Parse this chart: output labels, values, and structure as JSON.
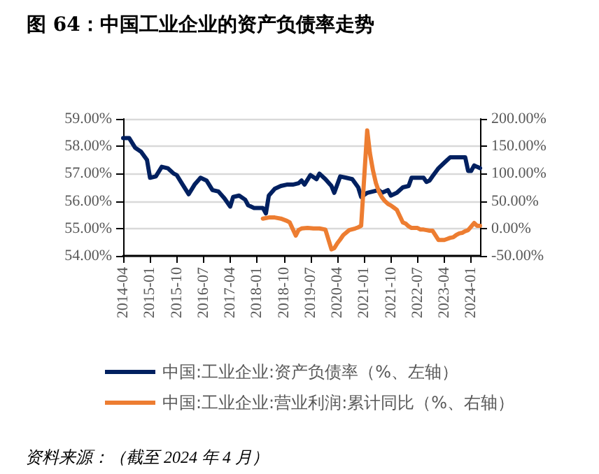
{
  "chart_data": {
    "type": "line",
    "title": "图 64：中国工业企业的资产负债率走势",
    "annotations": [
      "资料来源：（截至 2024 年 4 月）"
    ],
    "xlim": [
      "2014-04",
      "2024-04"
    ],
    "xticks": [
      "2014-04",
      "2015-01",
      "2015-10",
      "2016-07",
      "2017-04",
      "2018-01",
      "2018-10",
      "2019-07",
      "2020-04",
      "2021-01",
      "2021-10",
      "2022-07",
      "2023-04",
      "2024-01"
    ],
    "ylim": [
      54,
      59
    ],
    "yticks": [
      {
        "value": 54,
        "label": "54.00%"
      },
      {
        "value": 55,
        "label": "55.00%"
      },
      {
        "value": 56,
        "label": "56.00%"
      },
      {
        "value": 57,
        "label": "57.00%"
      },
      {
        "value": 58,
        "label": "58.00%"
      },
      {
        "value": 59,
        "label": "59.00%"
      }
    ],
    "y2lim": [
      -50,
      200
    ],
    "y2ticks": [
      {
        "value": -50,
        "label": "-50.00%"
      },
      {
        "value": 0,
        "label": "0.00%"
      },
      {
        "value": 50,
        "label": "50.00%"
      },
      {
        "value": 100,
        "label": "100.00%"
      },
      {
        "value": 150,
        "label": "150.00%"
      },
      {
        "value": 200,
        "label": "200.00%"
      }
    ],
    "grid": "y",
    "legend": "bottom",
    "marker": "none",
    "line_style": "solid",
    "series": [
      {
        "name": "中国:工业企业:资产负债率（%、左轴）",
        "color": "#002060",
        "x": [
          "2014-04",
          "2014-06",
          "2014-08",
          "2014-10",
          "2014-12",
          "2015-01",
          "2015-03",
          "2015-05",
          "2015-07",
          "2015-09",
          "2015-10",
          "2015-12",
          "2016-02",
          "2016-04",
          "2016-06",
          "2016-08",
          "2016-10",
          "2016-12",
          "2017-02",
          "2017-04",
          "2017-05",
          "2017-07",
          "2017-09",
          "2017-10",
          "2017-12",
          "2018-02",
          "2018-03",
          "2018-04",
          "2018-05",
          "2018-07",
          "2018-09",
          "2018-11",
          "2019-01",
          "2019-03",
          "2019-04",
          "2019-05",
          "2019-07",
          "2019-09",
          "2019-10",
          "2019-12",
          "2020-02",
          "2020-03",
          "2020-05",
          "2020-07",
          "2020-09",
          "2020-11",
          "2020-12",
          "2021-02",
          "2021-04",
          "2021-06",
          "2021-07",
          "2021-09",
          "2021-10",
          "2021-12",
          "2022-02",
          "2022-04",
          "2022-05",
          "2022-07",
          "2022-09",
          "2022-10",
          "2022-11",
          "2022-12",
          "2023-02",
          "2023-04",
          "2023-06",
          "2023-08",
          "2023-10",
          "2023-11",
          "2023-12",
          "2024-01",
          "2024-02",
          "2024-03",
          "2024-04"
        ],
        "values": [
          58.3,
          58.3,
          57.95,
          57.8,
          57.5,
          56.85,
          56.9,
          57.25,
          57.2,
          57.0,
          56.95,
          56.6,
          56.25,
          56.6,
          56.85,
          56.75,
          56.4,
          56.35,
          56.1,
          55.8,
          56.15,
          56.2,
          56.05,
          55.85,
          55.75,
          55.75,
          55.75,
          55.55,
          56.2,
          56.45,
          56.55,
          56.6,
          56.6,
          56.65,
          56.75,
          56.6,
          56.95,
          56.8,
          57.0,
          56.8,
          56.55,
          56.3,
          56.9,
          56.85,
          56.8,
          56.5,
          56.15,
          56.3,
          56.35,
          56.4,
          56.3,
          56.4,
          56.2,
          56.3,
          56.5,
          56.55,
          56.85,
          56.85,
          56.85,
          56.7,
          56.75,
          56.9,
          57.2,
          57.4,
          57.6,
          57.6,
          57.6,
          57.6,
          57.1,
          57.1,
          57.3,
          57.25,
          57.2
        ]
      },
      {
        "name": "中国:工业企业:营业利润:累计同比（%、右轴）",
        "color": "#ed7d31",
        "axis": "y2",
        "x": [
          "2018-03",
          "2018-05",
          "2018-07",
          "2018-09",
          "2018-11",
          "2018-12",
          "2019-02",
          "2019-03",
          "2019-04",
          "2019-06",
          "2019-08",
          "2019-10",
          "2019-12",
          "2020-02",
          "2020-03",
          "2020-04",
          "2020-05",
          "2020-06",
          "2020-08",
          "2020-10",
          "2020-11",
          "2020-12",
          "2021-02",
          "2021-03",
          "2021-04",
          "2021-05",
          "2021-06",
          "2021-07",
          "2021-08",
          "2021-09",
          "2021-10",
          "2021-11",
          "2021-12",
          "2022-02",
          "2022-03",
          "2022-04",
          "2022-05",
          "2022-06",
          "2022-07",
          "2022-08",
          "2022-09",
          "2022-10",
          "2022-11",
          "2022-12",
          "2023-02",
          "2023-03",
          "2023-04",
          "2023-05",
          "2023-06",
          "2023-07",
          "2023-08",
          "2023-09",
          "2023-10",
          "2023-11",
          "2023-12",
          "2024-02",
          "2024-03",
          "2024-04"
        ],
        "values": [
          18,
          20,
          20,
          18,
          14,
          11,
          -13,
          -3,
          0,
          1,
          0,
          0,
          -2,
          -38,
          -36,
          -27,
          -20,
          -12,
          -3,
          0,
          2,
          5,
          179,
          137,
          106,
          83,
          67,
          57,
          50,
          45,
          42,
          38,
          34,
          11,
          9,
          4,
          1,
          1,
          1,
          -2,
          -2,
          -3,
          -4,
          -4,
          -21,
          -21,
          -21,
          -19,
          -17,
          -16,
          -12,
          -9,
          -8,
          -5,
          -3,
          10,
          5,
          5
        ]
      }
    ]
  }
}
